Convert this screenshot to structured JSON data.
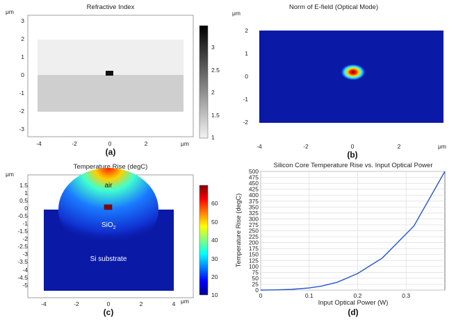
{
  "panels": {
    "a": {
      "title": "Refractive Index",
      "unit": "μm",
      "label": "(a)",
      "x_ticks": [
        "-4",
        "-2",
        "0",
        "2",
        "μm"
      ],
      "y_ticks": [
        "3",
        "2",
        "1",
        "0",
        "-1",
        "-2",
        "-3"
      ],
      "y_unit": "μm",
      "colorbar_ticks": [
        "3",
        "2.5",
        "2",
        "1.5",
        "1"
      ],
      "colors": {
        "cladding_top": "#efefef",
        "cladding_bottom": "#cfcfcf",
        "core": "#111111"
      }
    },
    "b": {
      "title": "Norm of E-field (Optical Mode)",
      "unit": "μm",
      "label": "(b)",
      "x_ticks": [
        "-4",
        "-2",
        "0",
        "2",
        "μm"
      ],
      "y_ticks": [
        "2",
        "1",
        "0",
        "-1",
        "-2"
      ],
      "y_unit": "μm",
      "colors": {
        "background": "#0a1aa6"
      }
    },
    "c": {
      "title": "Temperature Rise (degC)",
      "unit": "μm",
      "label": "(c)",
      "x_ticks": [
        "-4",
        "-2",
        "0",
        "2",
        "4",
        "μm"
      ],
      "y_ticks": [
        "1.5",
        "1",
        "0.5",
        "0",
        "-0.5",
        "-1",
        "-1.5",
        "-2",
        "-2.5",
        "-3",
        "-3.5",
        "-4",
        "-4.5",
        "-5"
      ],
      "y_unit": "μm",
      "colorbar_ticks": [
        "60",
        "50",
        "40",
        "30",
        "20",
        "10"
      ],
      "annotations": {
        "air": "air",
        "sio2": "SiO",
        "sio2_sub": "2",
        "substrate": "Si substrate"
      },
      "colors": {
        "background": "#0a1aa6",
        "core": "#8b0000"
      }
    },
    "d": {
      "title": "Silicon Core Temperature Rise vs. Input Optical Power",
      "label": "(d)",
      "colors": {
        "line": "#2255cc"
      }
    }
  },
  "chart_data": {
    "type": "line",
    "title": "Silicon Core Temperature Rise vs. Input Optical Power",
    "xlabel": "Input Optical Power (W)",
    "ylabel": "Temperature Rise (degC)",
    "xlim": [
      0,
      0.38
    ],
    "ylim": [
      0,
      500
    ],
    "x_ticks": [
      0,
      0.1,
      0.2,
      0.3
    ],
    "y_ticks": [
      0,
      25,
      50,
      75,
      100,
      125,
      150,
      175,
      200,
      225,
      250,
      275,
      300,
      325,
      350,
      375,
      400,
      425,
      450,
      475,
      500
    ],
    "grid": true,
    "series": [
      {
        "x": [
          0,
          0.032,
          0.063,
          0.1,
          0.126,
          0.158,
          0.2,
          0.251,
          0.316,
          0.38
        ],
        "y": [
          0,
          1,
          3,
          9,
          17,
          33,
          70,
          135,
          270,
          500
        ]
      }
    ]
  }
}
